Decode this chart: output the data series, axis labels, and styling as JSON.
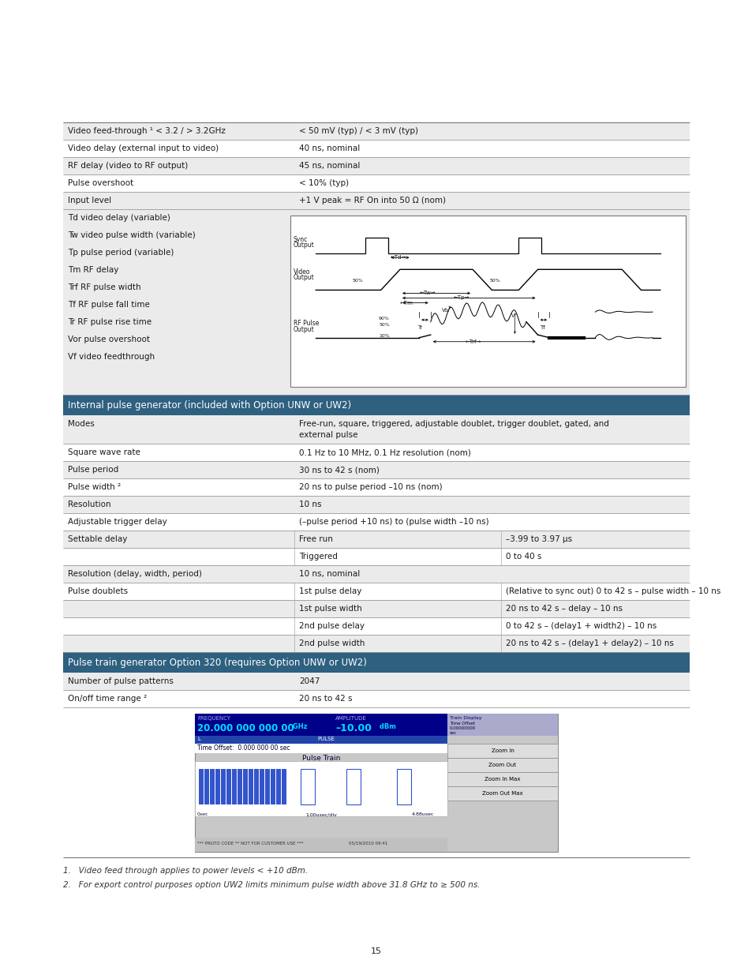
{
  "page_number": "15",
  "header_color": "#2E6080",
  "header_text_color": "#FFFFFF",
  "row_bg_alt": "#EBEBEB",
  "row_bg_white": "#FFFFFF",
  "simple_rows": [
    [
      "Video feed-through ¹ < 3.2 / > 3.2GHz",
      "< 50 mV (typ) / < 3 mV (typ)"
    ],
    [
      "Video delay (external input to video)",
      "40 ns, nominal"
    ],
    [
      "RF delay (video to RF output)",
      "45 ns, nominal"
    ],
    [
      "Pulse overshoot",
      "< 10% (typ)"
    ],
    [
      "Input level",
      "+1 V peak = RF On into 50 Ω (nom)"
    ]
  ],
  "waveform_labels": [
    "Td video delay (variable)",
    "Tw video pulse width (variable)",
    "Tp pulse period (variable)",
    "Tm RF delay",
    "Trf RF pulse width",
    "Tf RF pulse fall time",
    "Tr RF pulse rise time",
    "Vor pulse overshoot",
    "Vf video feedthrough"
  ],
  "section1_header": "Internal pulse generator (included with Option UNW or UW2)",
  "section1_rows": [
    {
      "col1": "Modes",
      "col2": "Free-run, square, triggered, adjustable doublet, trigger doublet, gated, and\nexternal pulse",
      "col3": ""
    },
    {
      "col1": "Square wave rate",
      "col2": "0.1 Hz to 10 MHz, 0.1 Hz resolution (nom)",
      "col3": ""
    },
    {
      "col1": "Pulse period",
      "col2": "30 ns to 42 s (nom)",
      "col3": ""
    },
    {
      "col1": "Pulse width ²",
      "col2": "20 ns to pulse period –10 ns (nom)",
      "col3": ""
    },
    {
      "col1": "Resolution",
      "col2": "10 ns",
      "col3": ""
    },
    {
      "col1": "Adjustable trigger delay",
      "col2": "(–pulse period +10 ns) to (pulse width –10 ns)",
      "col3": ""
    },
    {
      "col1": "Settable delay",
      "col2": "Free run",
      "col3": "–3.99 to 3.97 μs"
    },
    {
      "col1": "",
      "col2": "Triggered",
      "col3": "0 to 40 s"
    },
    {
      "col1": "Resolution (delay, width, period)",
      "col2": "10 ns, nominal",
      "col3": ""
    },
    {
      "col1": "Pulse doublets",
      "col2": "1st pulse delay",
      "col3": "(Relative to sync out) 0 to 42 s – pulse width – 10 ns"
    },
    {
      "col1": "",
      "col2": "1st pulse width",
      "col3": "20 ns to 42 s – delay – 10 ns"
    },
    {
      "col1": "",
      "col2": "2nd pulse delay",
      "col3": "0 to 42 s – (delay1 + width2) – 10 ns"
    },
    {
      "col1": "",
      "col2": "2nd pulse width",
      "col3": "20 ns to 42 s – (delay1 + delay2) – 10 ns"
    }
  ],
  "section2_header": "Pulse train generator Option 320 (requires Option UNW or UW2)",
  "section2_rows": [
    {
      "col1": "Number of pulse patterns",
      "col2": "2047"
    },
    {
      "col1": "On/off time range ²",
      "col2": "20 ns to 42 s"
    }
  ],
  "footnotes": [
    "1.   Video feed through applies to power levels < +10 dBm.",
    "2.   For export control purposes option UW2 limits minimum pulse width above 31.8 GHz to ≥ 500 ns."
  ]
}
